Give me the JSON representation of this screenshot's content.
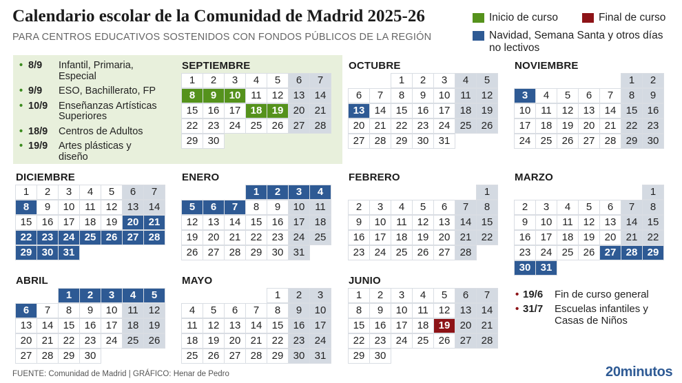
{
  "header": {
    "title": "Calendario escolar de la Comunidad de Madrid 2025-26",
    "subtitle": "PARA CENTROS EDUCATIVOS SOSTENIDOS CON FONDOS PÚBLICOS DE LA REGIÓN"
  },
  "legend": {
    "start": {
      "label": "Inicio de curso",
      "color": "#55921c"
    },
    "end": {
      "label": "Final de curso",
      "color": "#8d1317"
    },
    "holiday": {
      "label": "Navidad,  Semana Santa y otros días no lectivos",
      "color": "#2e5a94"
    }
  },
  "start_dates": [
    {
      "date": "8/9",
      "label": "Infantil, Primaria, Especial"
    },
    {
      "date": "9/9",
      "label": "ESO, Bachillerato, FP"
    },
    {
      "date": "10/9",
      "label": "Enseñanzas Artísticas Superiores"
    },
    {
      "date": "18/9",
      "label": "Centros de Adultos"
    },
    {
      "date": "19/9",
      "label": "Artes plásticas y diseño"
    }
  ],
  "end_dates": [
    {
      "date": "19/6",
      "label": "Fin de curso general"
    },
    {
      "date": "31/7",
      "label": "Escuelas infantiles y Casas de Niños"
    }
  ],
  "months": [
    {
      "name": "SEPTIEMBRE",
      "first_weekday": 0,
      "days": 30,
      "start": [
        8,
        9,
        10,
        18,
        19
      ],
      "holiday": [],
      "end": []
    },
    {
      "name": "OCTUBRE",
      "first_weekday": 2,
      "days": 31,
      "start": [],
      "holiday": [
        13
      ],
      "end": []
    },
    {
      "name": "NOVIEMBRE",
      "first_weekday": 5,
      "days": 30,
      "start": [],
      "holiday": [
        3
      ],
      "end": []
    },
    {
      "name": "DICIEMBRE",
      "first_weekday": 0,
      "days": 31,
      "start": [],
      "holiday": [
        8,
        20,
        21,
        22,
        23,
        24,
        25,
        26,
        27,
        28,
        29,
        30,
        31
      ],
      "end": []
    },
    {
      "name": "ENERO",
      "first_weekday": 3,
      "days": 31,
      "start": [],
      "holiday": [
        1,
        2,
        3,
        4,
        5,
        6,
        7
      ],
      "end": []
    },
    {
      "name": "FEBRERO",
      "first_weekday": 6,
      "days": 28,
      "start": [],
      "holiday": [],
      "end": []
    },
    {
      "name": "MARZO",
      "first_weekday": 6,
      "days": 31,
      "start": [],
      "holiday": [
        27,
        28,
        29,
        30,
        31
      ],
      "end": []
    },
    {
      "name": "ABRIL",
      "first_weekday": 2,
      "days": 30,
      "start": [],
      "holiday": [
        1,
        2,
        3,
        4,
        5,
        6
      ],
      "end": []
    },
    {
      "name": "MAYO",
      "first_weekday": 4,
      "days": 31,
      "start": [],
      "holiday": [],
      "end": []
    },
    {
      "name": "JUNIO",
      "first_weekday": 0,
      "days": 30,
      "start": [],
      "holiday": [],
      "end": [
        19
      ]
    }
  ],
  "footer": {
    "source": "FUENTE: Comunidad de Madrid  |  GRÁFICO: Henar de Pedro",
    "brand": "20minutos"
  }
}
